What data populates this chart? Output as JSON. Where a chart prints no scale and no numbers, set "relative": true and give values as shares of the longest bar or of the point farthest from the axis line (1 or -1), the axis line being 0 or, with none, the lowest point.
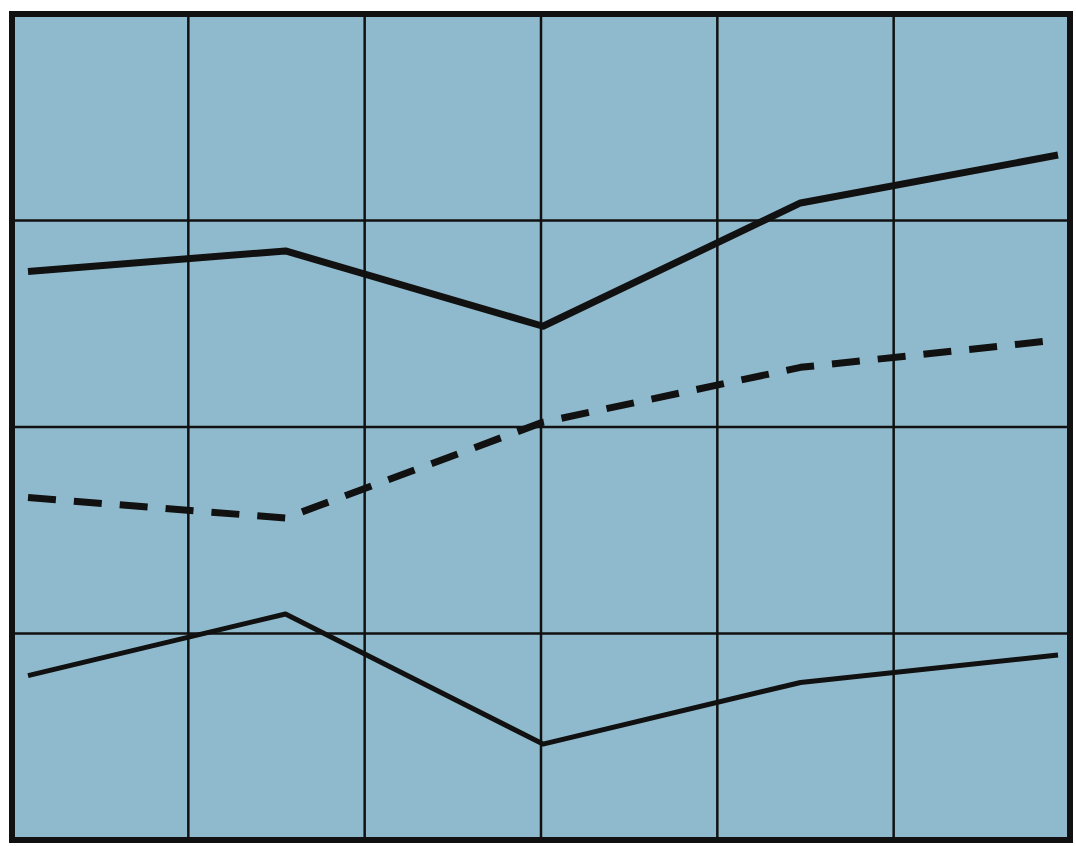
{
  "chart_data": {
    "type": "line",
    "relative": true,
    "grid": true,
    "marker": "none",
    "legend": false,
    "categories": [
      null,
      null,
      null,
      null,
      null
    ],
    "series": [
      {
        "color": "#111111",
        "line_style": "solid",
        "values": [
          0.83,
          0.86,
          0.75,
          0.93,
          1
        ]
      },
      {
        "color": "#111111",
        "line_style": "dashed",
        "values": [
          0.5,
          0.47,
          0.61,
          0.69,
          0.73
        ]
      },
      {
        "color": "#111111",
        "line_style": "solid",
        "values": [
          0.24,
          0.33,
          0.14,
          0.23,
          0.27
        ]
      }
    ]
  }
}
